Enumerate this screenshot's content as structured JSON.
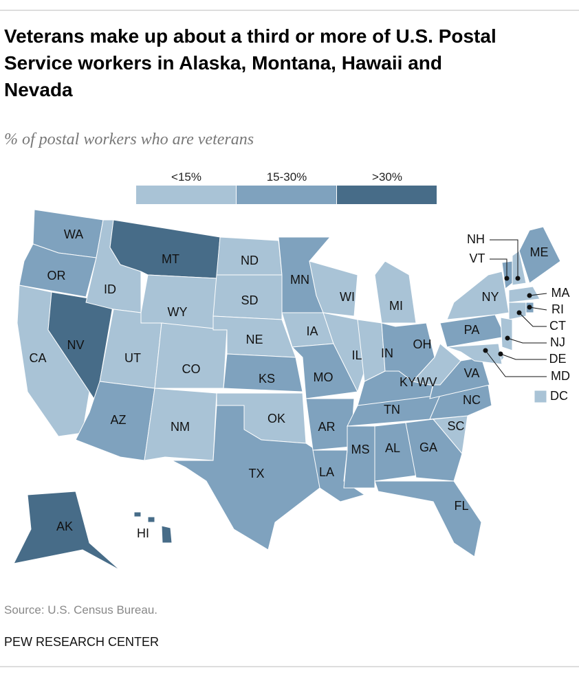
{
  "title": "Veterans make up about a third or more of U.S. Postal Service workers in Alaska, Montana, Hawaii and Nevada",
  "subtitle": "% of postal workers who are veterans",
  "legend": [
    {
      "label": "<15%",
      "color": "#a9c3d6"
    },
    {
      "label": "15-30%",
      "color": "#7fa2be"
    },
    {
      "label": ">30%",
      "color": "#476c88"
    }
  ],
  "states": [
    {
      "abbr": "WA",
      "class": "15-30%"
    },
    {
      "abbr": "OR",
      "class": "15-30%"
    },
    {
      "abbr": "CA",
      "class": "<15%"
    },
    {
      "abbr": "NV",
      "class": ">30%"
    },
    {
      "abbr": "ID",
      "class": "<15%"
    },
    {
      "abbr": "MT",
      "class": ">30%"
    },
    {
      "abbr": "WY",
      "class": "<15%"
    },
    {
      "abbr": "UT",
      "class": "<15%"
    },
    {
      "abbr": "CO",
      "class": "<15%"
    },
    {
      "abbr": "AZ",
      "class": "15-30%"
    },
    {
      "abbr": "NM",
      "class": "<15%"
    },
    {
      "abbr": "ND",
      "class": "<15%"
    },
    {
      "abbr": "SD",
      "class": "<15%"
    },
    {
      "abbr": "NE",
      "class": "<15%"
    },
    {
      "abbr": "KS",
      "class": "15-30%"
    },
    {
      "abbr": "OK",
      "class": "<15%"
    },
    {
      "abbr": "TX",
      "class": "15-30%"
    },
    {
      "abbr": "MN",
      "class": "15-30%"
    },
    {
      "abbr": "IA",
      "class": "<15%"
    },
    {
      "abbr": "MO",
      "class": "15-30%"
    },
    {
      "abbr": "AR",
      "class": "15-30%"
    },
    {
      "abbr": "LA",
      "class": "15-30%"
    },
    {
      "abbr": "WI",
      "class": "<15%"
    },
    {
      "abbr": "IL",
      "class": "<15%"
    },
    {
      "abbr": "MI",
      "class": "<15%"
    },
    {
      "abbr": "IN",
      "class": "<15%"
    },
    {
      "abbr": "OH",
      "class": "15-30%"
    },
    {
      "abbr": "KY",
      "class": "15-30%"
    },
    {
      "abbr": "TN",
      "class": "15-30%"
    },
    {
      "abbr": "MS",
      "class": "15-30%"
    },
    {
      "abbr": "AL",
      "class": "15-30%"
    },
    {
      "abbr": "GA",
      "class": "15-30%"
    },
    {
      "abbr": "FL",
      "class": "15-30%"
    },
    {
      "abbr": "SC",
      "class": "<15%"
    },
    {
      "abbr": "NC",
      "class": "15-30%"
    },
    {
      "abbr": "VA",
      "class": "15-30%"
    },
    {
      "abbr": "WV",
      "class": "<15%"
    },
    {
      "abbr": "PA",
      "class": "15-30%"
    },
    {
      "abbr": "NY",
      "class": "<15%"
    },
    {
      "abbr": "VT",
      "class": "15-30%"
    },
    {
      "abbr": "NH",
      "class": "<15%"
    },
    {
      "abbr": "ME",
      "class": "15-30%"
    },
    {
      "abbr": "MA",
      "class": "<15%"
    },
    {
      "abbr": "RI",
      "class": "15-30%"
    },
    {
      "abbr": "CT",
      "class": "<15%"
    },
    {
      "abbr": "NJ",
      "class": "<15%"
    },
    {
      "abbr": "DE",
      "class": "<15%"
    },
    {
      "abbr": "MD",
      "class": "<15%"
    },
    {
      "abbr": "DC",
      "class": "<15%"
    },
    {
      "abbr": "AK",
      "class": ">30%"
    },
    {
      "abbr": "HI",
      "class": ">30%"
    }
  ],
  "source": "Source: U.S. Census Bureau.",
  "footer": "PEW RESEARCH CENTER"
}
